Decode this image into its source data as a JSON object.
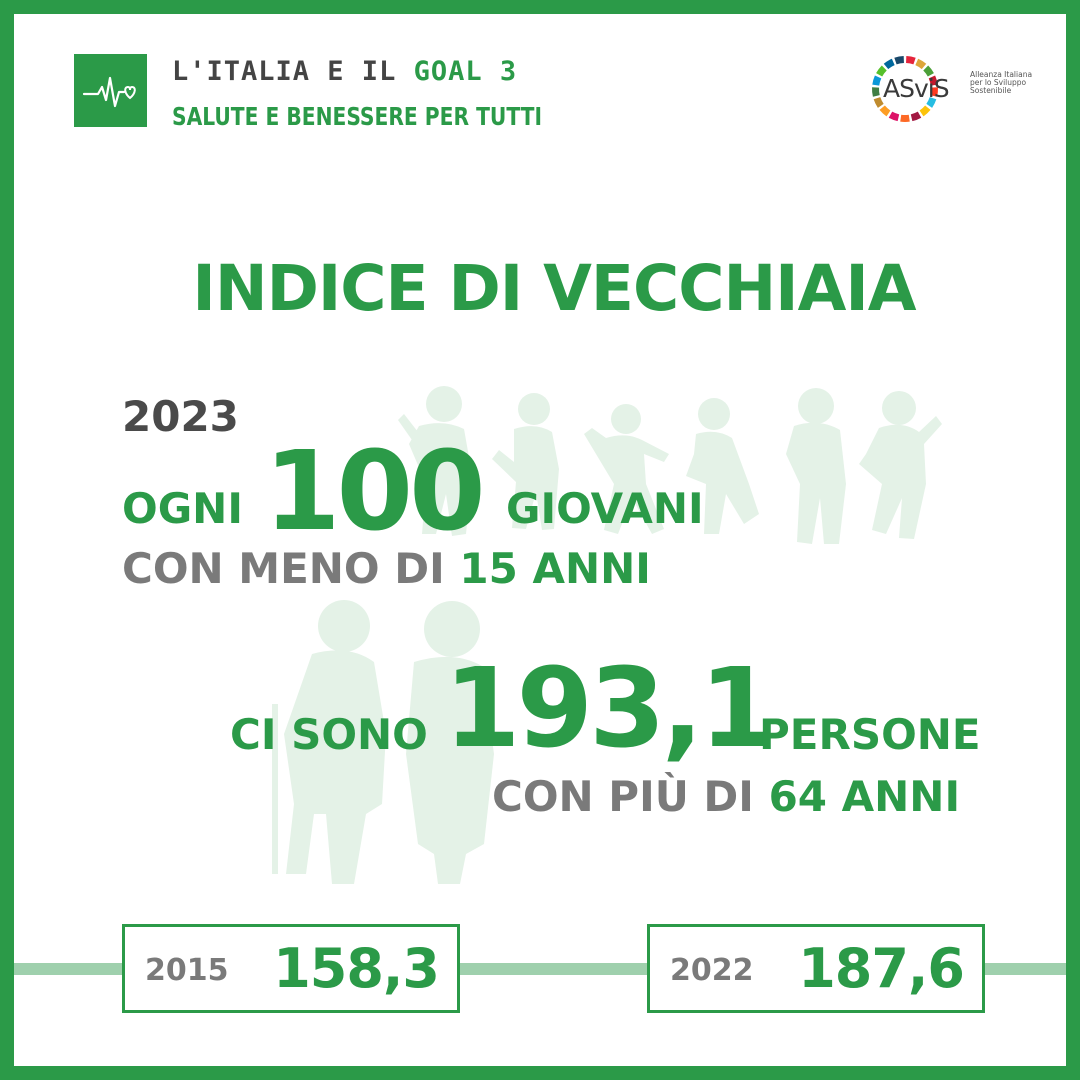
{
  "header": {
    "line1_prefix": "L'ITALIA E IL ",
    "line1_goal": "GOAL 3",
    "line2": "SALUTE E BENESSERE PER TUTTI",
    "goal_icon": "heartbeat-icon"
  },
  "logo": {
    "name": "ASviS",
    "subtitle": "Alleanza Italiana per lo Sviluppo Sostenibile"
  },
  "title": "INDICE DI VECCHIAIA",
  "main": {
    "year": "2023",
    "ogni": "OGNI",
    "young_count": "100",
    "giovani": "GIOVANI",
    "meno_prefix": "CON MENO DI ",
    "meno_value": "15 ANNI",
    "ci_sono": "CI SONO",
    "old_count": "193,1",
    "persone": "PERSONE",
    "piu_prefix": "CON PIÙ DI ",
    "piu_value": "64 ANNI"
  },
  "timeline": [
    {
      "year": "2015",
      "value": "158,3"
    },
    {
      "year": "2022",
      "value": "187,6"
    }
  ],
  "colors": {
    "green": "#2b9a48",
    "light_green": "#9fd0ad",
    "silhouette": "#e4f2e7",
    "gray": "#7a7a7a",
    "dark_gray": "#4a4a4a"
  }
}
